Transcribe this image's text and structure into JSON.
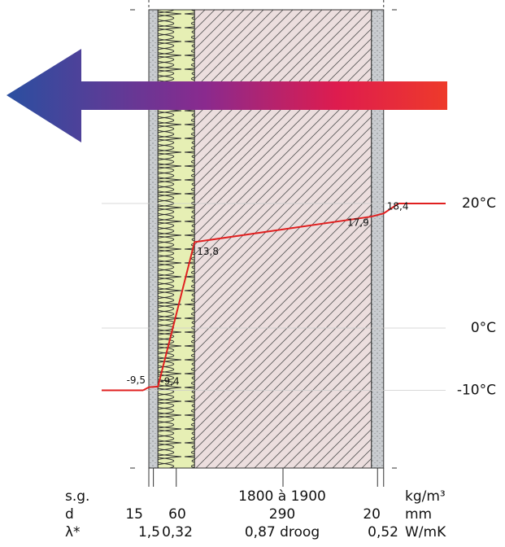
{
  "layers": [
    {
      "d": 15,
      "lambda": "1,5"
    },
    {
      "d": 60,
      "lambda": "0,32"
    },
    {
      "d": 290,
      "lambda": "0,87 droog",
      "sg": "1800 à 1900"
    },
    {
      "d": 20,
      "lambda": "0,52"
    }
  ],
  "rows": {
    "sg": "s.g.",
    "d": "d",
    "lambda": "λ*"
  },
  "units": {
    "sg": "kg/m³",
    "d": "mm",
    "lambda": "W/mK"
  },
  "temperature": {
    "yticks": [
      {
        "value": 20,
        "label": "20°C"
      },
      {
        "value": 0,
        "label": "0°C"
      },
      {
        "value": -10,
        "label": "-10°C"
      }
    ],
    "profile": {
      "values": [
        -9.5,
        -9.4,
        13.8,
        17.9,
        18.4
      ],
      "value_labels": [
        "-9,5",
        "-9,4",
        "13,8",
        "17,9",
        "18,4"
      ],
      "color": "#e02020"
    }
  }
}
